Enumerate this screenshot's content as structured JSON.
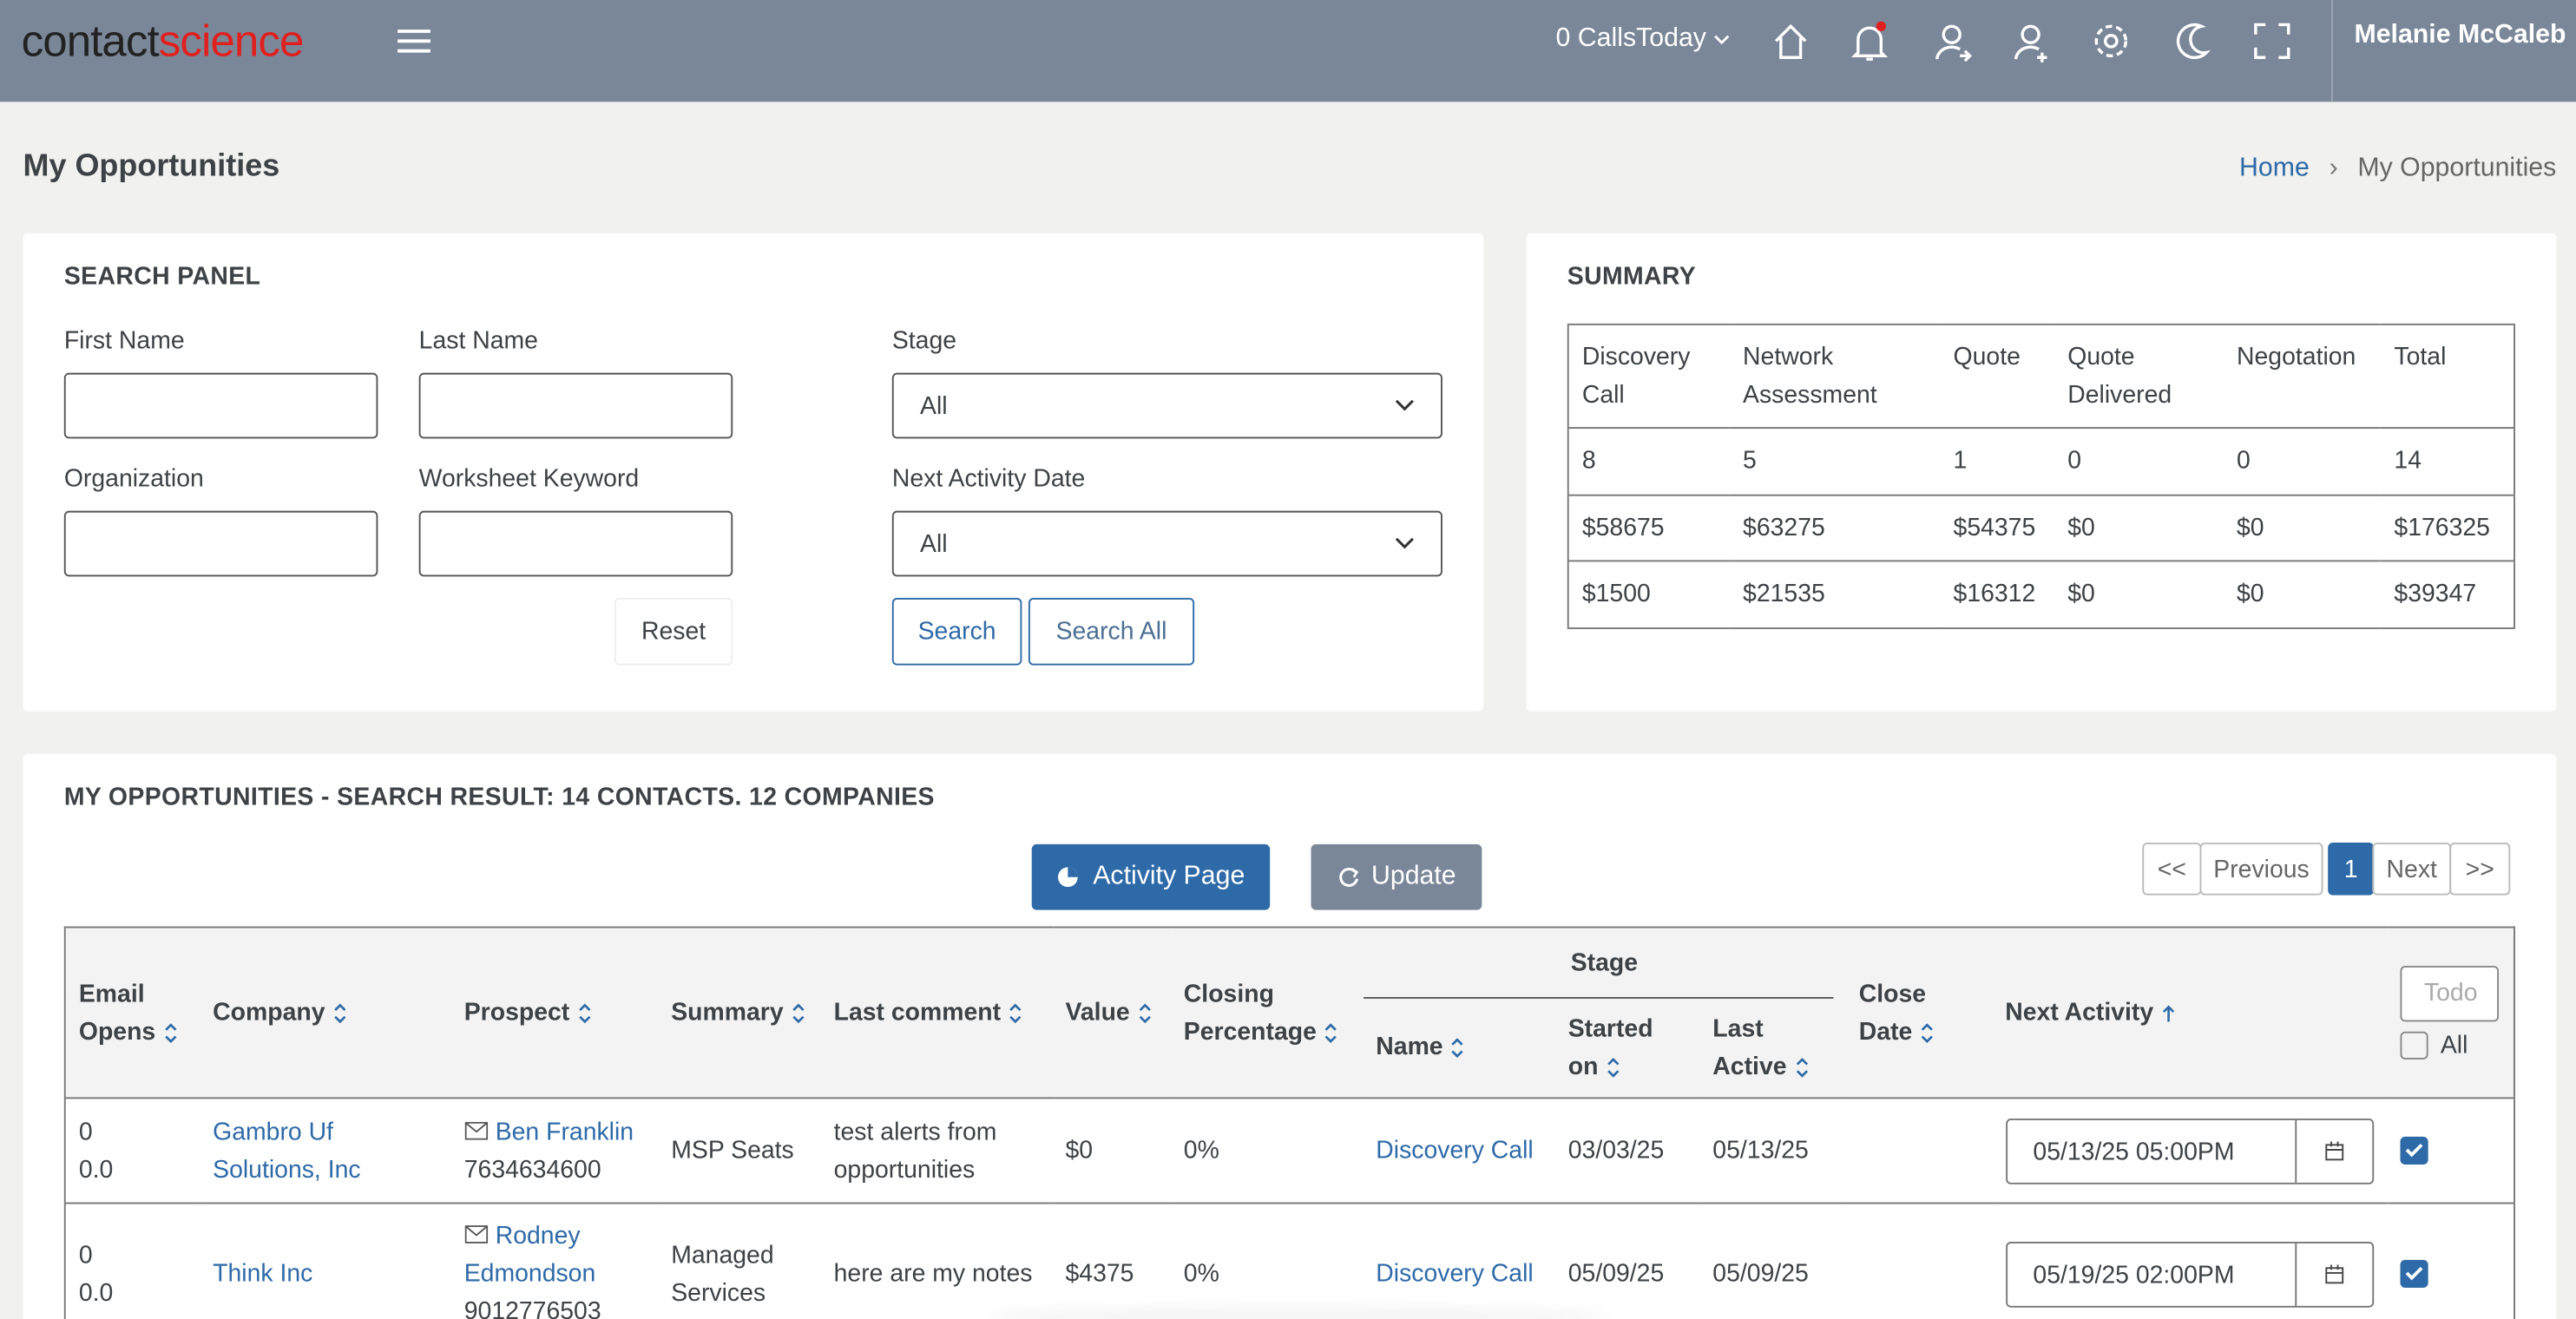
{
  "header": {
    "logo": [
      "contact",
      "science"
    ],
    "calls_today": "0 CallsToday",
    "user": "Melanie McCaleb"
  },
  "page": {
    "title": "My Opportunities",
    "breadcrumb": [
      "Home",
      "My Opportunities"
    ]
  },
  "search_panel": {
    "title": "SEARCH PANEL",
    "fields": [
      "First Name",
      "Last Name",
      "Organization",
      "Worksheet Keyword"
    ],
    "selects": [
      {
        "label": "Stage",
        "value": "All"
      },
      {
        "label": "Next Activity Date",
        "value": "All"
      }
    ],
    "buttons": [
      "Reset",
      "Search",
      "Search All"
    ]
  },
  "summary": {
    "title": "SUMMARY",
    "headers": [
      "Discovery Call",
      "Network Assessment",
      "Quote",
      "Quote Delivered",
      "Negotation",
      "Total"
    ],
    "rows": [
      [
        "8",
        "5",
        "1",
        "0",
        "0",
        "14"
      ],
      [
        "$58675",
        "$63275",
        "$54375",
        "$0",
        "$0",
        "$176325"
      ],
      [
        "$1500",
        "$21535",
        "$16312",
        "$0",
        "$0",
        "$39347"
      ]
    ]
  },
  "results": {
    "title": "MY OPPORTUNITIES - SEARCH RESULT: 14 CONTACTS. 12 COMPANIES",
    "buttons": [
      "Activity Page",
      "Update"
    ],
    "pagination": [
      "<<",
      "Previous",
      "1",
      "Next",
      ">>"
    ],
    "headers": {
      "email_opens": "Email Opens",
      "company": "Company",
      "prospect": "Prospect",
      "summary": "Summary",
      "last_comment": "Last comment",
      "value": "Value",
      "closing": "Closing Percentage",
      "stage": "Stage",
      "stage_name": "Name",
      "started_on": "Started on",
      "last_active": "Last Active",
      "close_date": "Close Date",
      "next_activity": "Next Activity",
      "todo_placeholder": "Todo",
      "all": "All"
    },
    "rows": [
      {
        "email_opens": [
          "0",
          "0.0"
        ],
        "company": "Gambro Uf Solutions, Inc",
        "prospect": "Ben Franklin",
        "phone": "7634634600",
        "summary": "MSP Seats",
        "last_comment": "test alerts from opportunities",
        "value": "$0",
        "closing": "0%",
        "stage_name": "Discovery Call",
        "started_on": "03/03/25",
        "last_active": "05/13/25",
        "next_activity": "05/13/25 05:00PM"
      },
      {
        "email_opens": [
          "0",
          "0.0"
        ],
        "company": "Think Inc",
        "prospect": "Rodney Edmondson",
        "phone": "9012776503",
        "summary": "Managed Services",
        "last_comment": "here are my notes",
        "value": "$4375",
        "closing": "0%",
        "stage_name": "Discovery Call",
        "started_on": "05/09/25",
        "last_active": "05/09/25",
        "next_activity": "05/19/25 02:00PM"
      }
    ]
  }
}
